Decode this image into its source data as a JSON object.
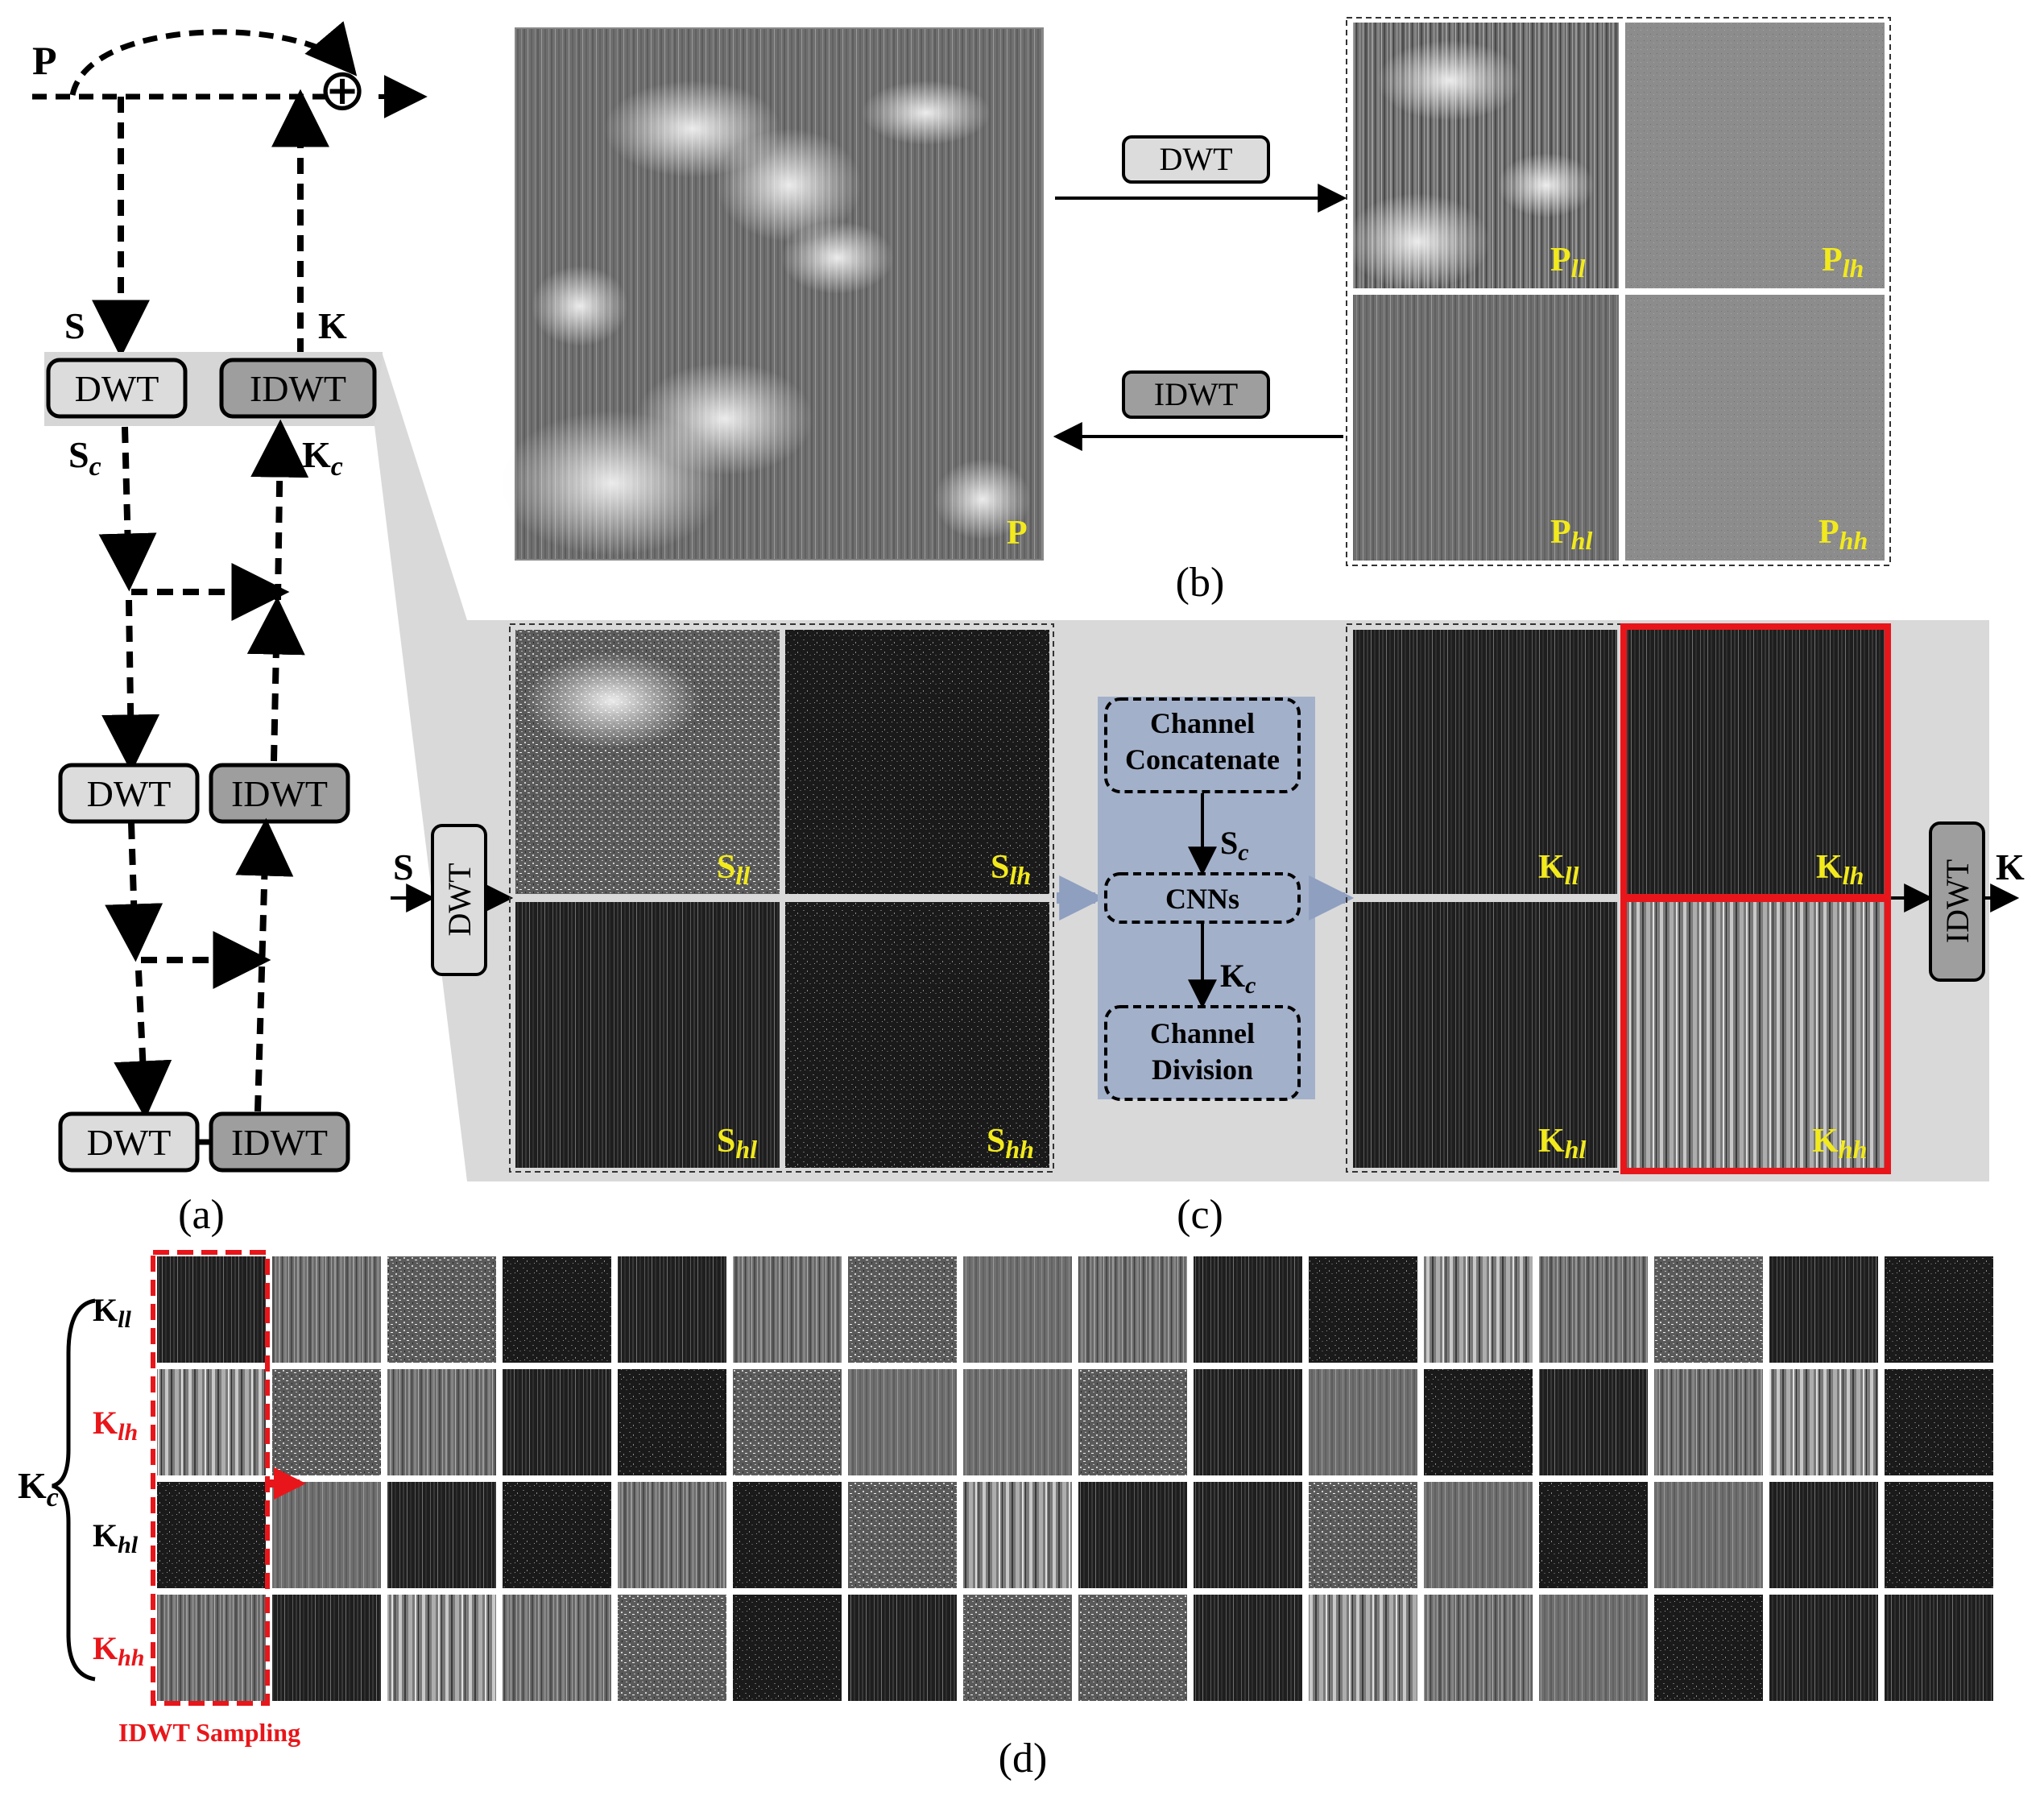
{
  "colors": {
    "label_yellow": "#f2ea1c",
    "highlight_red": "#e8161a",
    "panel_gray": "#d9d9d9",
    "module_blue": "#a3b0c9",
    "box_light": "#dcdcdc",
    "box_dark": "#9e9e9e"
  },
  "panel_a": {
    "caption": "(a)",
    "input_label": "P",
    "add_symbol": "⊕",
    "s_label": "S",
    "k_label": "K",
    "sc_label": {
      "base": "S",
      "sub": "c"
    },
    "kc_label": {
      "base": "K",
      "sub": "c"
    },
    "dwt_label": "DWT",
    "idwt_label": "IDWT"
  },
  "panel_b": {
    "caption": "(b)",
    "dwt_label": "DWT",
    "idwt_label": "IDWT",
    "image_label": "P",
    "subbands": [
      {
        "base": "P",
        "sub": "ll"
      },
      {
        "base": "P",
        "sub": "lh"
      },
      {
        "base": "P",
        "sub": "hl"
      },
      {
        "base": "P",
        "sub": "hh"
      }
    ]
  },
  "panel_c": {
    "caption": "(c)",
    "input_label": "S",
    "output_label": "K",
    "dwt_label": "DWT",
    "idwt_label": "IDWT",
    "s_subbands": [
      {
        "base": "S",
        "sub": "ll"
      },
      {
        "base": "S",
        "sub": "lh"
      },
      {
        "base": "S",
        "sub": "hl"
      },
      {
        "base": "S",
        "sub": "hh"
      }
    ],
    "k_subbands": [
      {
        "base": "K",
        "sub": "ll"
      },
      {
        "base": "K",
        "sub": "lh"
      },
      {
        "base": "K",
        "sub": "hl"
      },
      {
        "base": "K",
        "sub": "hh"
      }
    ],
    "module": {
      "concat_line1": "Channel",
      "concat_line2": "Concatenate",
      "cnn": "CNNs",
      "division_line1": "Channel",
      "division_line2": "Division",
      "sc_label": {
        "base": "S",
        "sub": "c"
      },
      "kc_label": {
        "base": "K",
        "sub": "c"
      }
    }
  },
  "panel_d": {
    "caption": "(d)",
    "kc_label": {
      "base": "K",
      "sub": "c"
    },
    "rows": [
      {
        "base": "K",
        "sub": "ll",
        "highlight": false
      },
      {
        "base": "K",
        "sub": "lh",
        "highlight": true
      },
      {
        "base": "K",
        "sub": "hl",
        "highlight": false
      },
      {
        "base": "K",
        "sub": "hh",
        "highlight": true
      }
    ],
    "sampling_label": "IDWT Sampling",
    "columns": 16
  }
}
